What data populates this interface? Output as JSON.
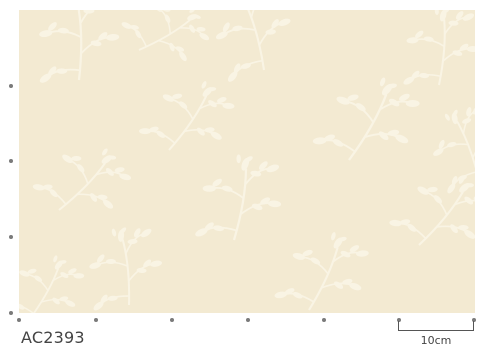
{
  "product": {
    "code": "AC2393"
  },
  "scale": {
    "label": "10cm"
  },
  "swatch": {
    "base_color": "#f3ead2",
    "motif_color": "#fbf6e8",
    "motif_icon": "leaf-sprig-pattern"
  }
}
